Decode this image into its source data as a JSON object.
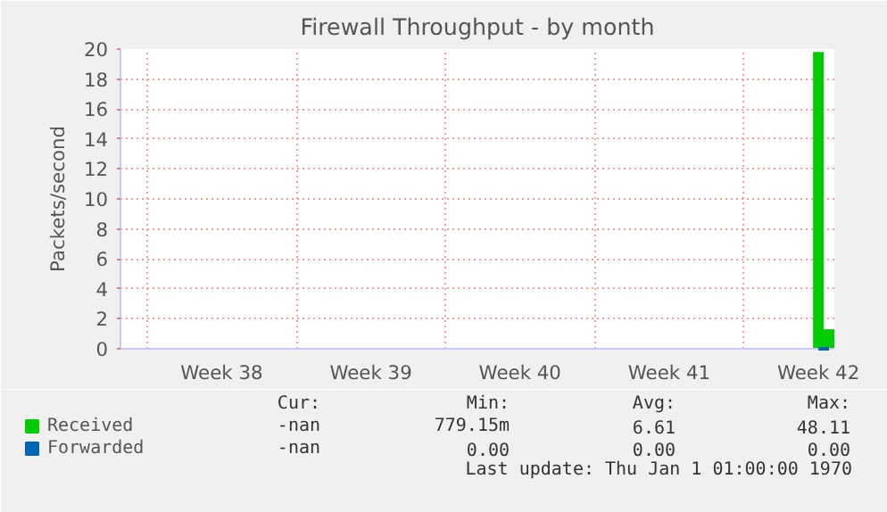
{
  "chart_data": {
    "type": "bar",
    "title": "Firewall Throughput - by month",
    "ylabel": "Packets/second",
    "categories": [
      null,
      null,
      null,
      null,
      null,
      null,
      null,
      null,
      null,
      "Week 38",
      null,
      null,
      null,
      null,
      null,
      null,
      null,
      null,
      null,
      null,
      null,
      null,
      null,
      "Week 39",
      null,
      null,
      null,
      null,
      null,
      null,
      null,
      null,
      null,
      null,
      null,
      null,
      null,
      "Week 40",
      null,
      null,
      null,
      null,
      null,
      null,
      null,
      null,
      null,
      null,
      null,
      null,
      null,
      "Week 41",
      null,
      null,
      null,
      null,
      null,
      null,
      null,
      null,
      null,
      null,
      null,
      null,
      null,
      "Week 42",
      null
    ],
    "ylim": [
      0,
      20
    ],
    "yticks": [
      0,
      2,
      4,
      6,
      8,
      10,
      12,
      14,
      16,
      18,
      20
    ],
    "grid": true,
    "legend": "bottom left",
    "series": [
      {
        "name": "Received",
        "color": "#00cc00",
        "values": [
          null,
          null,
          null,
          null,
          null,
          null,
          null,
          null,
          null,
          null,
          null,
          null,
          null,
          null,
          null,
          null,
          null,
          null,
          null,
          null,
          null,
          null,
          null,
          null,
          null,
          null,
          null,
          null,
          null,
          null,
          null,
          null,
          null,
          null,
          null,
          null,
          null,
          null,
          null,
          null,
          null,
          null,
          null,
          null,
          null,
          null,
          null,
          null,
          null,
          null,
          null,
          null,
          null,
          null,
          null,
          null,
          null,
          null,
          null,
          null,
          null,
          null,
          null,
          null,
          null,
          19.8,
          1.3
        ]
      },
      {
        "name": "Forwarded",
        "color": "#0066b3",
        "type": "line",
        "values": [
          null,
          null,
          null,
          null,
          null,
          null,
          null,
          null,
          null,
          null,
          null,
          null,
          null,
          null,
          null,
          null,
          null,
          null,
          null,
          null,
          null,
          null,
          null,
          null,
          null,
          null,
          null,
          null,
          null,
          null,
          null,
          null,
          null,
          null,
          null,
          null,
          null,
          null,
          null,
          null,
          null,
          null,
          null,
          null,
          null,
          null,
          null,
          null,
          null,
          null,
          null,
          null,
          null,
          null,
          null,
          null,
          null,
          null,
          null,
          null,
          null,
          null,
          null,
          null,
          null,
          0,
          0
        ]
      }
    ],
    "annotations": [
      "Cur:",
      "Min:",
      "Avg:",
      "Max:",
      "-nan",
      "779.15m",
      "6.61",
      "48.11",
      "-nan",
      "0.00",
      "0.00",
      "0.00",
      "Last update: Thu Jan  1 01:00:00 1970"
    ]
  }
}
